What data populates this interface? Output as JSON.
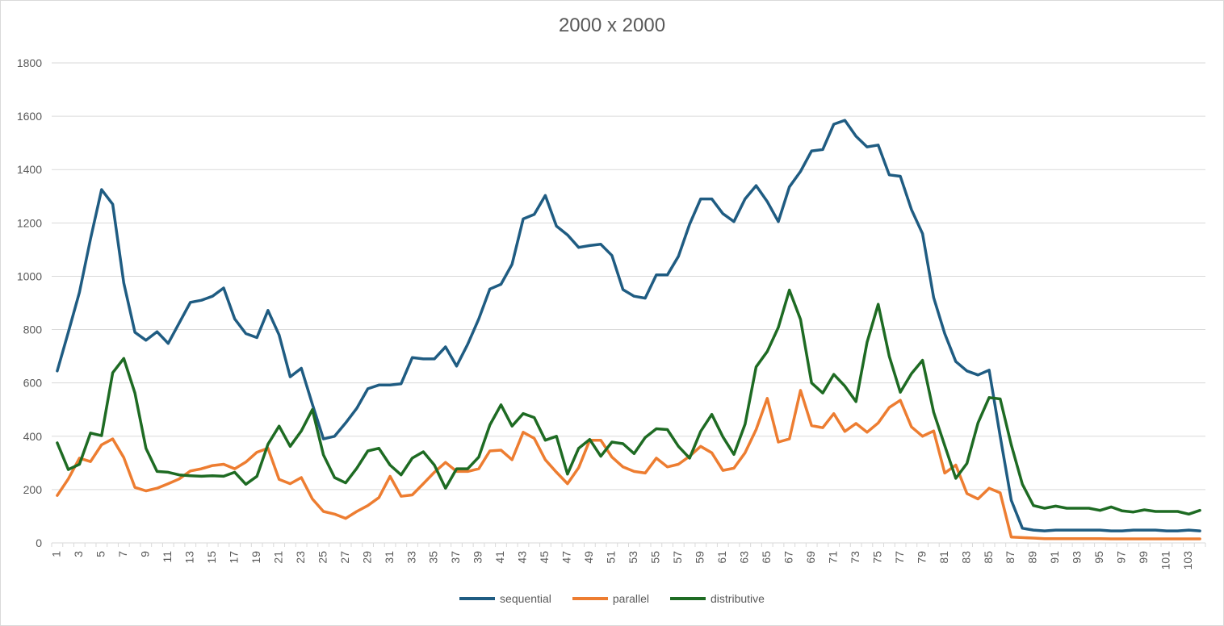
{
  "chart_data": {
    "type": "line",
    "title": "2000 x 2000",
    "xlabel": "",
    "ylabel": "",
    "ylim": [
      0,
      1800
    ],
    "yticks": [
      "0",
      "200",
      "400",
      "600",
      "800",
      "1000",
      "1200",
      "1400",
      "1600",
      "1800"
    ],
    "x_tick_labels": [
      "1",
      "3",
      "5",
      "7",
      "9",
      "11",
      "13",
      "15",
      "17",
      "19",
      "21",
      "23",
      "25",
      "27",
      "29",
      "31",
      "33",
      "35",
      "37",
      "39",
      "41",
      "43",
      "45",
      "47",
      "49",
      "51",
      "53",
      "55",
      "57",
      "59",
      "61",
      "63",
      "65",
      "67",
      "69",
      "71",
      "73",
      "75",
      "77",
      "79",
      "81",
      "83",
      "85",
      "87",
      "89",
      "91",
      "93",
      "95",
      "97",
      "99",
      "101",
      "103"
    ],
    "grid": "horizontal",
    "legend_position": "bottom",
    "series": [
      {
        "name": "sequential",
        "color": "#1f5c82",
        "values": [
          645,
          790,
          940,
          1140,
          1325,
          1270,
          975,
          790,
          760,
          792,
          748,
          825,
          902,
          910,
          925,
          956,
          840,
          785,
          770,
          872,
          780,
          623,
          655,
          520,
          390,
          400,
          450,
          505,
          578,
          592,
          592,
          597,
          695,
          690,
          690,
          735,
          663,
          745,
          840,
          952,
          970,
          1045,
          1215,
          1232,
          1303,
          1188,
          1155,
          1108,
          1115,
          1120,
          1078,
          950,
          925,
          918,
          1005,
          1005,
          1075,
          1195,
          1290,
          1290,
          1235,
          1205,
          1290,
          1340,
          1280,
          1205,
          1335,
          1393,
          1470,
          1475,
          1570,
          1585,
          1525,
          1485,
          1492,
          1380,
          1375,
          1250,
          1160,
          920,
          785,
          680,
          645,
          630,
          648,
          400,
          160,
          55,
          48,
          45,
          48,
          48,
          48,
          48,
          48,
          45,
          45,
          48,
          48,
          48,
          45,
          45,
          48,
          45
        ]
      },
      {
        "name": "parallel",
        "color": "#ed7d31",
        "values": [
          178,
          240,
          318,
          305,
          368,
          390,
          320,
          208,
          195,
          205,
          222,
          240,
          270,
          278,
          290,
          295,
          278,
          303,
          340,
          355,
          238,
          222,
          245,
          165,
          118,
          108,
          92,
          118,
          140,
          170,
          250,
          175,
          180,
          222,
          265,
          302,
          268,
          268,
          278,
          345,
          348,
          312,
          415,
          392,
          312,
          265,
          222,
          282,
          385,
          385,
          322,
          285,
          268,
          262,
          318,
          285,
          295,
          325,
          362,
          338,
          272,
          280,
          338,
          425,
          542,
          378,
          390,
          572,
          440,
          432,
          485,
          418,
          448,
          415,
          450,
          508,
          535,
          435,
          400,
          420,
          262,
          292,
          185,
          165,
          205,
          188,
          22,
          20,
          18,
          16,
          16,
          16,
          16,
          16,
          16,
          15,
          15,
          15,
          15,
          15,
          15,
          15,
          15,
          15
        ]
      },
      {
        "name": "distributive",
        "color": "#1e6b23",
        "values": [
          375,
          275,
          295,
          412,
          402,
          638,
          692,
          562,
          355,
          268,
          265,
          255,
          252,
          250,
          252,
          250,
          265,
          220,
          250,
          370,
          438,
          362,
          420,
          500,
          330,
          245,
          225,
          280,
          345,
          355,
          292,
          255,
          318,
          342,
          292,
          205,
          278,
          278,
          322,
          442,
          518,
          438,
          485,
          470,
          385,
          400,
          258,
          355,
          388,
          325,
          378,
          372,
          335,
          395,
          428,
          425,
          362,
          318,
          418,
          482,
          398,
          332,
          445,
          660,
          718,
          808,
          948,
          838,
          600,
          562,
          632,
          588,
          530,
          752,
          895,
          700,
          565,
          635,
          685,
          490,
          365,
          242,
          298,
          450,
          545,
          540,
          368,
          220,
          140,
          130,
          138,
          130,
          130,
          130,
          122,
          135,
          120,
          116,
          124,
          118,
          118,
          118,
          108,
          122
        ]
      }
    ]
  }
}
